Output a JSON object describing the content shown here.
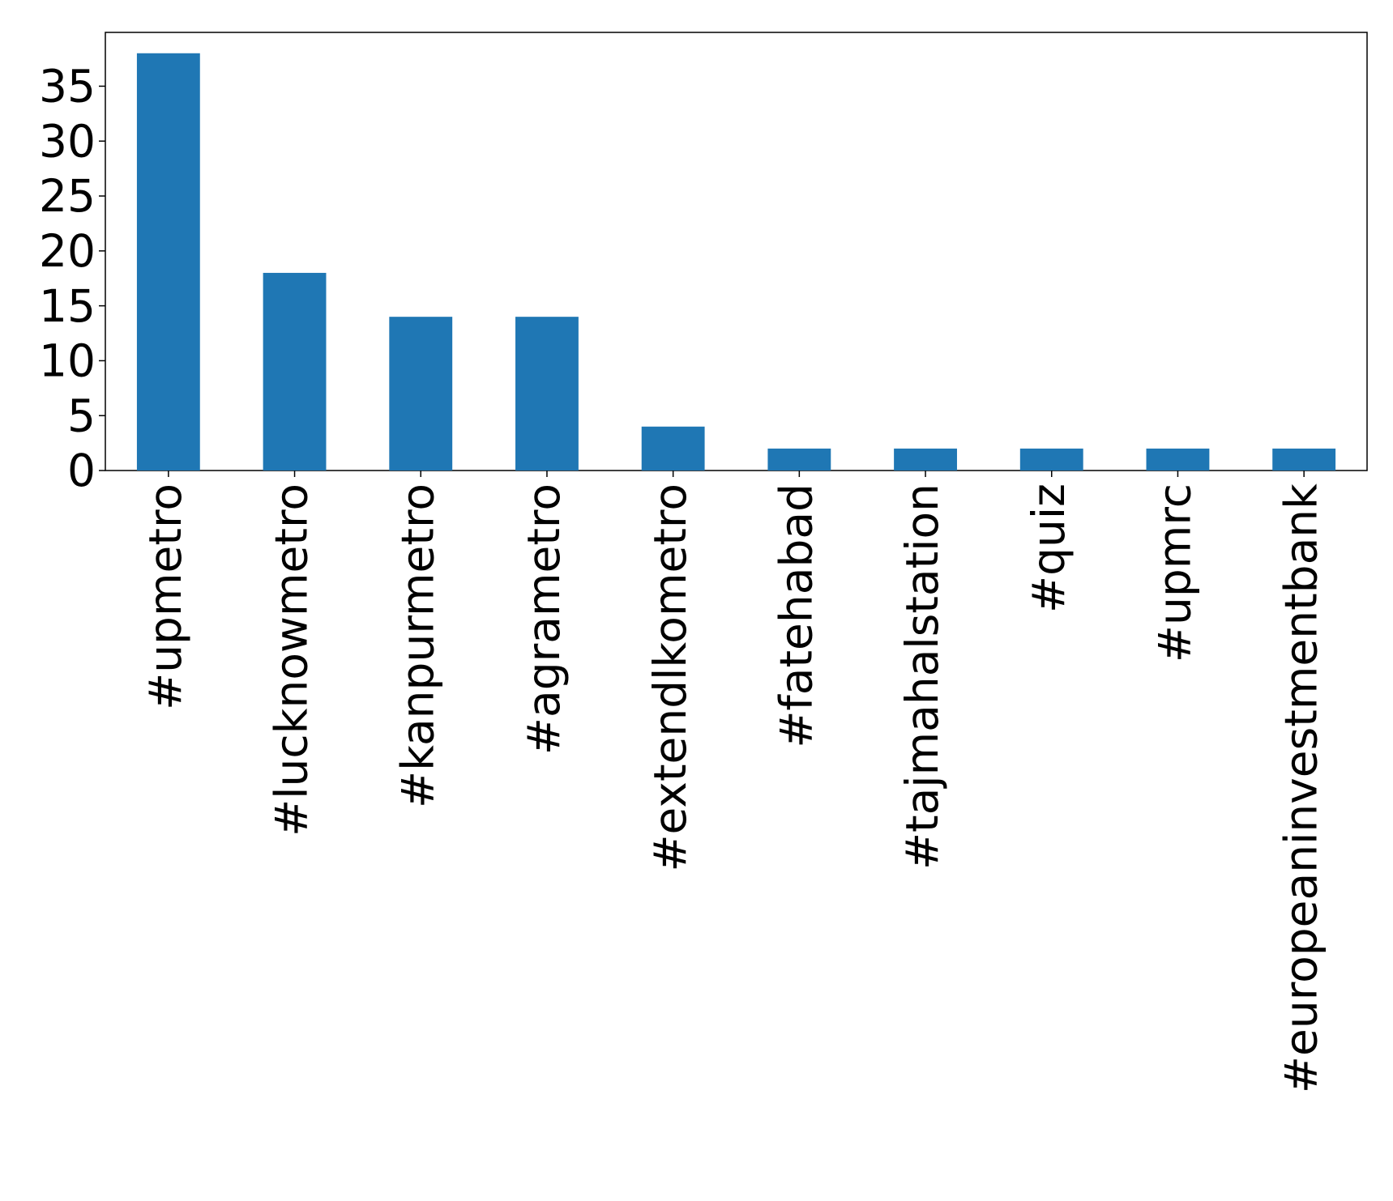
{
  "chart_data": {
    "type": "bar",
    "categories": [
      "#upmetro",
      "#lucknowmetro",
      "#kanpurmetro",
      "#agrametro",
      "#extendlkometro",
      "#fatehabad",
      "#tajmahalstation",
      "#quiz",
      "#upmrc",
      "#europeaninvestmentbank"
    ],
    "values": [
      38,
      18,
      14,
      14,
      4,
      2,
      2,
      2,
      2,
      2
    ],
    "color": "#1f77b4",
    "ylim": [
      0,
      39.9
    ],
    "yticks": [
      0,
      5,
      10,
      15,
      20,
      25,
      30,
      35
    ],
    "grid": false
  }
}
